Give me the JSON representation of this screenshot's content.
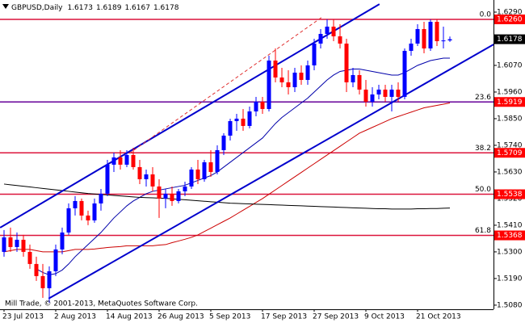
{
  "chart_data": {
    "type": "candlestick",
    "title": "GBPUSD,Daily",
    "footer": "Mill Trade, © 2001-2013, MetaQuotes Software Corp.",
    "categories": [
      "23 Jul 2013",
      null,
      null,
      null,
      null,
      null,
      null,
      null,
      "2 Aug 2013",
      null,
      null,
      null,
      null,
      null,
      null,
      null,
      "14 Aug 2013",
      null,
      null,
      null,
      null,
      null,
      null,
      null,
      "26 Aug 2013",
      null,
      null,
      null,
      null,
      null,
      null,
      null,
      "5 Sep 2013",
      null,
      null,
      null,
      null,
      null,
      null,
      null,
      "17 Sep 2013",
      null,
      null,
      null,
      null,
      null,
      null,
      null,
      "27 Sep 2013",
      null,
      null,
      null,
      null,
      null,
      null,
      null,
      "9 Oct 2013",
      null,
      null,
      null,
      null,
      null,
      null,
      null,
      "21 Oct 2013",
      null,
      null,
      null,
      null,
      null
    ],
    "open": [
      1.53,
      1.536,
      1.532,
      1.535,
      1.53,
      1.525,
      1.52,
      1.515,
      1.522,
      1.531,
      1.538,
      1.548,
      1.551,
      1.545,
      1.543,
      1.55,
      1.554,
      1.566,
      1.569,
      1.566,
      1.57,
      1.565,
      1.56,
      1.562,
      1.557,
      1.552,
      1.554,
      1.551,
      1.555,
      1.557,
      1.564,
      1.56,
      1.567,
      1.563,
      1.572,
      1.578,
      1.584,
      1.585,
      1.582,
      1.588,
      1.592,
      1.589,
      1.609,
      1.602,
      1.6,
      1.598,
      1.604,
      1.601,
      1.607,
      1.616,
      1.62,
      1.623,
      1.619,
      1.616,
      1.6,
      1.603,
      1.597,
      1.592,
      1.595,
      1.597,
      1.594,
      1.597,
      1.594,
      1.613,
      1.616,
      1.622,
      1.614,
      1.625,
      1.617,
      1.6173
    ],
    "high": [
      1.539,
      1.54,
      1.538,
      1.537,
      1.533,
      1.528,
      1.525,
      1.524,
      1.533,
      1.54,
      1.55,
      1.553,
      1.552,
      1.547,
      1.552,
      1.556,
      1.568,
      1.571,
      1.572,
      1.572,
      1.573,
      1.568,
      1.564,
      1.565,
      1.56,
      1.556,
      1.557,
      1.556,
      1.559,
      1.565,
      1.568,
      1.568,
      1.572,
      1.574,
      1.579,
      1.585,
      1.587,
      1.589,
      1.59,
      1.594,
      1.594,
      1.611,
      1.614,
      1.606,
      1.605,
      1.606,
      1.607,
      1.609,
      1.618,
      1.622,
      1.626,
      1.626,
      1.624,
      1.618,
      1.606,
      1.605,
      1.601,
      1.598,
      1.599,
      1.599,
      1.599,
      1.6,
      1.614,
      1.618,
      1.624,
      1.625,
      1.626,
      1.626,
      1.623,
      1.6189
    ],
    "low": [
      1.528,
      1.53,
      1.53,
      1.528,
      1.523,
      1.518,
      1.511,
      1.509,
      1.52,
      1.529,
      1.537,
      1.545,
      1.543,
      1.541,
      1.542,
      1.547,
      1.553,
      1.563,
      1.564,
      1.565,
      1.564,
      1.558,
      1.557,
      1.555,
      1.544,
      1.548,
      1.549,
      1.55,
      1.553,
      1.556,
      1.558,
      1.559,
      1.561,
      1.562,
      1.57,
      1.576,
      1.58,
      1.58,
      1.581,
      1.586,
      1.587,
      1.588,
      1.6,
      1.598,
      1.595,
      1.596,
      1.599,
      1.599,
      1.605,
      1.614,
      1.618,
      1.617,
      1.614,
      1.596,
      1.598,
      1.595,
      1.59,
      1.59,
      1.593,
      1.592,
      1.588,
      1.592,
      1.593,
      1.611,
      1.615,
      1.612,
      1.613,
      1.615,
      1.614,
      1.6167
    ],
    "close": [
      1.536,
      1.532,
      1.535,
      1.53,
      1.525,
      1.52,
      1.515,
      1.522,
      1.531,
      1.538,
      1.548,
      1.551,
      1.545,
      1.543,
      1.55,
      1.554,
      1.566,
      1.569,
      1.566,
      1.57,
      1.565,
      1.56,
      1.562,
      1.557,
      1.552,
      1.554,
      1.551,
      1.555,
      1.557,
      1.564,
      1.56,
      1.567,
      1.563,
      1.572,
      1.578,
      1.584,
      1.585,
      1.582,
      1.588,
      1.592,
      1.589,
      1.609,
      1.602,
      1.6,
      1.598,
      1.604,
      1.601,
      1.607,
      1.616,
      1.62,
      1.623,
      1.619,
      1.616,
      1.6,
      1.603,
      1.597,
      1.592,
      1.595,
      1.597,
      1.594,
      1.597,
      1.594,
      1.613,
      1.616,
      1.622,
      1.614,
      1.625,
      1.617,
      1.6173,
      1.6178
    ],
    "up_color": "#0000ff",
    "down_color": "#ff0000",
    "moving_averages": [
      {
        "color": "#0000aa",
        "values": [
          null,
          null,
          null,
          null,
          null,
          1.523,
          1.5215,
          1.5205,
          1.521,
          1.5225,
          1.525,
          1.528,
          1.5305,
          1.533,
          1.5355,
          1.538,
          1.541,
          1.544,
          1.5465,
          1.549,
          1.551,
          1.5525,
          1.554,
          1.555,
          1.5555,
          1.556,
          1.5565,
          1.557,
          1.5575,
          1.5585,
          1.5595,
          1.5605,
          1.5615,
          1.563,
          1.565,
          1.567,
          1.569,
          1.571,
          1.573,
          1.575,
          1.577,
          1.58,
          1.583,
          1.5855,
          1.5875,
          1.5895,
          1.5915,
          1.5935,
          1.596,
          1.5985,
          1.601,
          1.603,
          1.6045,
          1.605,
          1.6055,
          1.6055,
          1.605,
          1.6045,
          1.604,
          1.6035,
          1.603,
          1.603,
          1.604,
          1.6055,
          1.607,
          1.608,
          1.609,
          1.6095,
          1.61,
          1.61
        ]
      },
      {
        "color": "#cc0000",
        "values": [
          1.53,
          1.5305,
          1.531,
          1.531,
          1.531,
          1.5305,
          1.53,
          1.53,
          1.53,
          1.53,
          1.5305,
          1.531,
          1.531,
          1.531,
          1.5312,
          1.5315,
          1.5318,
          1.532,
          1.5322,
          1.5325,
          1.5325,
          1.5325,
          1.5325,
          1.5325,
          1.5328,
          1.533,
          1.5338,
          1.5345,
          1.5352,
          1.536,
          1.537,
          1.5384,
          1.5398,
          1.5412,
          1.5426,
          1.544,
          1.5456,
          1.5472,
          1.5488,
          1.5504,
          1.552,
          1.5538,
          1.5556,
          1.5574,
          1.5592,
          1.561,
          1.5628,
          1.5646,
          1.5664,
          1.5682,
          1.57,
          1.5718,
          1.5736,
          1.5754,
          1.5772,
          1.579,
          1.5802,
          1.5814,
          1.5826,
          1.5838,
          1.585,
          1.5859,
          1.5868,
          1.5877,
          1.5886,
          1.5895,
          1.59,
          1.5905,
          1.591,
          1.5915
        ]
      },
      {
        "color": "#000000",
        "values": [
          1.558,
          1.5577,
          1.5574,
          1.5571,
          1.5568,
          1.5565,
          1.5562,
          1.5559,
          1.5556,
          1.5553,
          1.555,
          1.5547,
          1.5544,
          1.5541,
          1.5539,
          1.5537,
          1.5535,
          1.5533,
          1.5531,
          1.5529,
          1.5527,
          1.5525,
          1.5524,
          1.5523,
          1.5522,
          1.5521,
          1.5519,
          1.5517,
          1.5515,
          1.5513,
          1.5511,
          1.5509,
          1.5507,
          1.5505,
          1.5503,
          1.5501,
          1.55,
          1.5499,
          1.5498,
          1.5497,
          1.5496,
          1.5495,
          1.5494,
          1.5493,
          1.5492,
          1.5491,
          1.549,
          1.5489,
          1.5488,
          1.5487,
          1.5486,
          1.5485,
          1.5484,
          1.5483,
          1.5482,
          1.5481,
          1.548,
          1.5479,
          1.5478,
          1.5478,
          1.5477,
          1.5477,
          1.5477,
          1.5477,
          1.5478,
          1.5478,
          1.5479,
          1.5479,
          1.548,
          1.5481
        ]
      }
    ],
    "trendlines": [
      {
        "color": "#0000cd",
        "dashed": false,
        "x": [
          -0.6,
          58.1
        ],
        "y": [
          1.54,
          1.6323
        ]
      },
      {
        "color": "#0000cd",
        "dashed": false,
        "x": [
          6.9,
          75.8
        ],
        "y": [
          1.5107,
          1.6157
        ]
      },
      {
        "color": "#e03030",
        "dashed": true,
        "x": [
          19.4,
          49.4
        ],
        "y": [
          1.5707,
          1.6273
        ]
      }
    ],
    "fib_levels": [
      {
        "ratio": "0.0",
        "color": "#dc143c",
        "value": {
          "value": 1.626,
          "label": "1.6260"
        }
      },
      {
        "ratio": "23.6",
        "color": "#660099",
        "value": {
          "value": 1.5919,
          "label": "1.5919"
        }
      },
      {
        "ratio": "38.2",
        "color": "#dc143c",
        "value": {
          "value": 1.5709,
          "label": "1.5709"
        }
      },
      {
        "ratio": "50.0",
        "color": "#dc143c",
        "value": {
          "value": 1.5538,
          "label": "1.5538"
        }
      },
      {
        "ratio": "61.8",
        "color": "#dc143c",
        "value": {
          "value": 1.5368,
          "label": "1.5368"
        }
      }
    ],
    "ylim": [
      1.5063,
      1.634
    ],
    "yticks": [
      {
        "value": 1.629,
        "label": "1.6290"
      },
      {
        "value": 1.607,
        "label": "1.6070"
      },
      {
        "value": 1.596,
        "label": "1.5960"
      },
      {
        "value": 1.585,
        "label": "1.5850"
      },
      {
        "value": 1.574,
        "label": "1.5740"
      },
      {
        "value": 1.563,
        "label": "1.5630"
      },
      {
        "value": 1.552,
        "label": "1.5520"
      },
      {
        "value": 1.541,
        "label": "1.5410"
      },
      {
        "value": 1.53,
        "label": "1.5300"
      },
      {
        "value": 1.519,
        "label": "1.5190"
      },
      {
        "value": 1.508,
        "label": "1.5080"
      }
    ],
    "grid": false
  }
}
